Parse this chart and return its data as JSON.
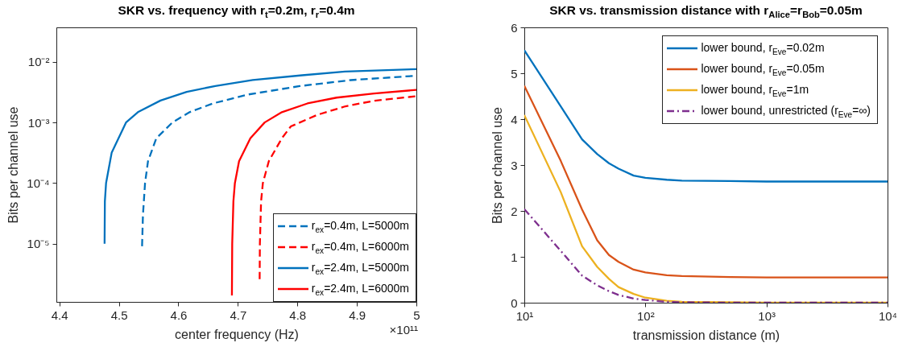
{
  "chart_data": [
    {
      "type": "line",
      "title": "SKR vs. frequency with r$_{t}$=0.2m, r$_{r}$=0.4m",
      "xlabel": "center frequency (Hz)",
      "ylabel": "Bits per channel use",
      "annotations": [
        "×10¹¹"
      ],
      "log": "y",
      "grid": false,
      "legend": "bottom right",
      "marker": "none",
      "xlim": [
        4.395,
        5
      ],
      "xticks": [
        4.4,
        4.5,
        4.6,
        4.7,
        4.8,
        4.9,
        5
      ],
      "ylim": [
        1.1e-06,
        0.037
      ],
      "yticks": [
        {
          "value": 1e-05,
          "label": "10⁻⁵"
        },
        {
          "value": 0.0001,
          "label": "10⁻⁴"
        },
        {
          "value": 0.001,
          "label": "10⁻³"
        },
        {
          "value": 0.01,
          "label": "10⁻²"
        }
      ],
      "series": [
        {
          "name": "r$_{ex}$=0.4m, L=5000m",
          "color": "#0072bd",
          "line_style": "dashed",
          "x": [
            4.539,
            4.5405,
            4.544,
            4.549,
            4.563,
            4.59,
            4.619,
            4.658,
            4.716,
            4.804,
            4.89,
            5
          ],
          "values": [
            9.1e-06,
            3e-05,
            0.0001,
            0.00023,
            0.00055,
            0.001,
            0.00148,
            0.00206,
            0.00288,
            0.00398,
            0.005,
            0.0059
          ]
        },
        {
          "name": "r$_{ex}$=0.4m, L=6000m",
          "color": "#ff0000",
          "line_style": "dashed",
          "x": [
            4.7366,
            4.737,
            4.739,
            4.742,
            4.752,
            4.774,
            4.789,
            4.833,
            4.881,
            4.93,
            5
          ],
          "values": [
            2.6e-06,
            1e-05,
            5e-05,
            0.0001,
            0.00023,
            0.00055,
            0.00086,
            0.00133,
            0.00185,
            0.00229,
            0.00271
          ]
        },
        {
          "name": "r$_{ex}$=2.4m, L=5000m",
          "color": "#0072bd",
          "line_style": "solid",
          "x": [
            4.476,
            4.4765,
            4.4785,
            4.488,
            4.512,
            4.532,
            4.57,
            4.614,
            4.662,
            4.725,
            4.808,
            4.88,
            5
          ],
          "values": [
            1e-05,
            5e-05,
            0.0001,
            0.00032,
            0.001,
            0.00148,
            0.0023,
            0.0032,
            0.004,
            0.005,
            0.006,
            0.0069,
            0.0076
          ]
        },
        {
          "name": "r$_{ex}$=2.4m, L=6000m",
          "color": "#ff0000",
          "line_style": "solid",
          "x": [
            4.69,
            4.6905,
            4.6925,
            4.695,
            4.702,
            4.721,
            4.745,
            4.774,
            4.817,
            4.866,
            4.929,
            5
          ],
          "values": [
            1.4e-06,
            1e-05,
            5e-05,
            0.0001,
            0.00023,
            0.00055,
            0.001,
            0.00148,
            0.00206,
            0.00257,
            0.003,
            0.00345
          ]
        }
      ]
    },
    {
      "type": "line",
      "title": "SKR vs. transmission distance with r$_{Alice}$=r$_{Bob}$=0.05m",
      "xlabel": "transmission distance (m)",
      "ylabel": "Bits per channel use",
      "log": "x",
      "grid": false,
      "legend": "top right",
      "marker": "none",
      "xlim": [
        10,
        10000
      ],
      "xticks": [
        {
          "value": 10,
          "label": "10¹"
        },
        {
          "value": 100,
          "label": "10²"
        },
        {
          "value": 1000,
          "label": "10³"
        },
        {
          "value": 10000,
          "label": "10⁴"
        }
      ],
      "ylim": [
        0,
        6
      ],
      "yticks": [
        0,
        1,
        2,
        3,
        4,
        5,
        6
      ],
      "x": [
        10,
        20,
        30,
        40,
        50,
        60,
        80,
        100,
        150,
        200,
        500,
        1000,
        10000
      ],
      "series": [
        {
          "name": "lower bound, r$_{Eve}$=0.02m",
          "color": "#0072bd",
          "line_style": "solid",
          "values": [
            5.5,
            4.28,
            3.56,
            3.24,
            3.04,
            2.92,
            2.77,
            2.72,
            2.68,
            2.66,
            2.65,
            2.64,
            2.64
          ]
        },
        {
          "name": "lower bound, r$_{Eve}$=0.05m",
          "color": "#d95319",
          "line_style": "solid",
          "values": [
            4.73,
            3.09,
            2.03,
            1.36,
            1.04,
            0.89,
            0.72,
            0.66,
            0.6,
            0.58,
            0.56,
            0.55,
            0.55
          ]
        },
        {
          "name": "lower bound, r$_{Eve}$=1m",
          "color": "#edb120",
          "line_style": "solid",
          "values": [
            4.09,
            2.41,
            1.23,
            0.78,
            0.52,
            0.34,
            0.19,
            0.11,
            0.04,
            0.02,
            0.01,
            0,
            0
          ]
        },
        {
          "name": "lower bound, unrestricted (r$_{Eve}$=∞)",
          "color": "#7e2f8e",
          "line_style": "dashdot",
          "values": [
            2.04,
            1.13,
            0.59,
            0.38,
            0.25,
            0.17,
            0.09,
            0.06,
            0.02,
            0.01,
            0,
            0,
            0
          ]
        }
      ]
    }
  ]
}
